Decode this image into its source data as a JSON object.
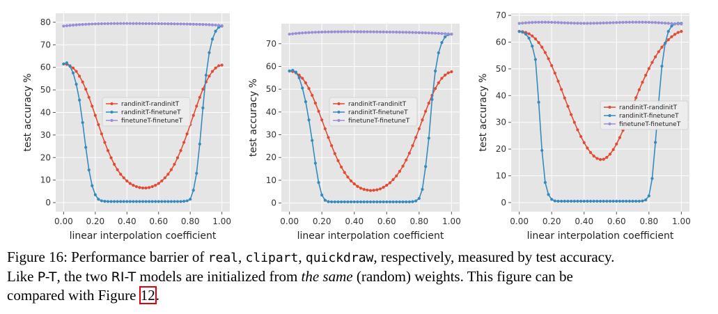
{
  "colors": {
    "panel_bg": "#e5e5e5",
    "grid": "#ffffff",
    "randinit_randinit": "#e24a33",
    "randinit_finetune": "#348abd",
    "finetune_finetune": "#988ed5",
    "figure_ref_box": "#e0000f"
  },
  "caption": {
    "line1_part1": "Figure 16: Performance barrier of ",
    "code_real": "real",
    "sep1": ", ",
    "code_clipart": "clipart",
    "sep2": ", ",
    "code_quickdraw": "quickdraw",
    "line1_part2": ", respectively, measured by test accuracy.",
    "line2_part1": "Like ",
    "model_pt": "P-T",
    "line2_part2": ", the two ",
    "model_rit": "RI-T",
    "line2_part3": " models are initialized from ",
    "emph_same": "the same",
    "line2_part4": " (random) weights. This figure can be",
    "line3_part1": "compared with Figure ",
    "figure_ref": "12",
    "line3_part2": "."
  },
  "chart_data": [
    {
      "type": "line",
      "xlabel": "linear interpolation coefficient",
      "ylabel": "test accuracy %",
      "xlim": [
        -0.05,
        1.05
      ],
      "ylim": [
        -4,
        84
      ],
      "xticks": [
        0.0,
        0.2,
        0.4,
        0.6,
        0.8,
        1.0
      ],
      "xtick_labels": [
        "0.00",
        "0.20",
        "0.40",
        "0.60",
        "0.80",
        "1.00"
      ],
      "yticks": [
        0,
        10,
        20,
        30,
        40,
        50,
        60,
        70,
        80
      ],
      "ytick_labels": [
        "0",
        "10",
        "20",
        "30",
        "40",
        "50",
        "60",
        "70",
        "80"
      ],
      "grid": true,
      "legend_position": "center",
      "x": [
        0.0,
        0.02,
        0.04,
        0.06,
        0.08,
        0.1,
        0.12,
        0.14,
        0.16,
        0.18,
        0.2,
        0.22,
        0.24,
        0.26,
        0.28,
        0.3,
        0.32,
        0.34,
        0.36,
        0.38,
        0.4,
        0.42,
        0.44,
        0.46,
        0.48,
        0.5,
        0.52,
        0.54,
        0.56,
        0.58,
        0.6,
        0.62,
        0.64,
        0.66,
        0.68,
        0.7,
        0.72,
        0.74,
        0.76,
        0.78,
        0.8,
        0.82,
        0.84,
        0.86,
        0.88,
        0.9,
        0.92,
        0.94,
        0.96,
        0.98,
        1.0
      ],
      "series": [
        {
          "name": "randinitT-randinitT",
          "color_key": "randinit_randinit",
          "values": [
            61.5,
            61.3,
            60.7,
            59.7,
            58.2,
            56.1,
            53.5,
            50.3,
            46.7,
            42.8,
            38.7,
            34.6,
            30.5,
            26.7,
            23.1,
            19.9,
            17.0,
            14.6,
            12.6,
            11.0,
            9.6,
            8.5,
            7.7,
            7.1,
            6.7,
            6.5,
            6.5,
            6.7,
            7.1,
            7.7,
            8.5,
            9.6,
            11.0,
            12.6,
            14.6,
            17.0,
            19.9,
            23.1,
            26.7,
            30.5,
            34.6,
            38.7,
            42.8,
            46.7,
            50.3,
            53.5,
            56.1,
            58.2,
            59.7,
            60.7,
            61.0
          ]
        },
        {
          "name": "randinitT-finetuneT",
          "color_key": "randinit_finetune",
          "values": [
            61.5,
            62.0,
            60.5,
            57.5,
            52.5,
            45.5,
            35.5,
            24.5,
            14.5,
            7.5,
            3.5,
            1.5,
            0.8,
            0.6,
            0.5,
            0.5,
            0.5,
            0.5,
            0.5,
            0.5,
            0.5,
            0.5,
            0.5,
            0.5,
            0.5,
            0.5,
            0.5,
            0.5,
            0.5,
            0.5,
            0.5,
            0.5,
            0.5,
            0.5,
            0.5,
            0.5,
            0.5,
            0.5,
            0.6,
            0.8,
            1.5,
            5.5,
            13.0,
            26.0,
            42.0,
            56.5,
            66.5,
            72.5,
            76.0,
            77.8,
            78.3
          ]
        },
        {
          "name": "finetuneT-finetuneT",
          "color_key": "finetune_finetune",
          "values": [
            78.3,
            78.45,
            78.6,
            78.72,
            78.83,
            78.93,
            79.02,
            79.1,
            79.17,
            79.23,
            79.28,
            79.32,
            79.36,
            79.39,
            79.41,
            79.43,
            79.44,
            79.45,
            79.46,
            79.46,
            79.46,
            79.46,
            79.45,
            79.45,
            79.44,
            79.43,
            79.42,
            79.41,
            79.4,
            79.39,
            79.38,
            79.37,
            79.35,
            79.34,
            79.32,
            79.3,
            79.28,
            79.26,
            79.24,
            79.21,
            79.18,
            79.15,
            79.11,
            79.07,
            79.02,
            78.96,
            78.9,
            78.82,
            78.73,
            78.62,
            78.5
          ]
        }
      ]
    },
    {
      "type": "line",
      "xlabel": "linear interpolation coefficient",
      "ylabel": "test accuracy %",
      "xlim": [
        -0.05,
        1.05
      ],
      "ylim": [
        -3.8,
        78.8
      ],
      "xticks": [
        0.0,
        0.2,
        0.4,
        0.6,
        0.8,
        1.0
      ],
      "xtick_labels": [
        "0.00",
        "0.20",
        "0.40",
        "0.60",
        "0.80",
        "1.00"
      ],
      "yticks": [
        0,
        10,
        20,
        30,
        40,
        50,
        60,
        70
      ],
      "ytick_labels": [
        "0",
        "10",
        "20",
        "30",
        "40",
        "50",
        "60",
        "70"
      ],
      "grid": true,
      "legend_position": "center",
      "x": [
        0.0,
        0.02,
        0.04,
        0.06,
        0.08,
        0.1,
        0.12,
        0.14,
        0.16,
        0.18,
        0.2,
        0.22,
        0.24,
        0.26,
        0.28,
        0.3,
        0.32,
        0.34,
        0.36,
        0.38,
        0.4,
        0.42,
        0.44,
        0.46,
        0.48,
        0.5,
        0.52,
        0.54,
        0.56,
        0.58,
        0.6,
        0.62,
        0.64,
        0.66,
        0.68,
        0.7,
        0.72,
        0.74,
        0.76,
        0.78,
        0.8,
        0.82,
        0.84,
        0.86,
        0.88,
        0.9,
        0.92,
        0.94,
        0.96,
        0.98,
        1.0
      ],
      "series": [
        {
          "name": "randinitT-randinitT",
          "color_key": "randinit_randinit",
          "values": [
            58.0,
            57.8,
            57.2,
            56.2,
            54.8,
            52.8,
            50.3,
            47.3,
            43.9,
            40.3,
            36.5,
            32.6,
            28.8,
            25.2,
            21.7,
            18.6,
            15.8,
            13.4,
            11.4,
            9.7,
            8.4,
            7.3,
            6.5,
            6.0,
            5.7,
            5.5,
            5.6,
            5.8,
            6.2,
            6.9,
            7.8,
            8.9,
            10.3,
            11.9,
            13.9,
            16.2,
            18.9,
            21.9,
            25.2,
            28.8,
            32.6,
            36.5,
            40.3,
            43.9,
            47.3,
            50.3,
            52.8,
            54.8,
            56.2,
            57.2,
            57.7
          ]
        },
        {
          "name": "randinitT-finetuneT",
          "color_key": "randinit_finetune",
          "values": [
            58.0,
            58.3,
            57.5,
            55.0,
            50.5,
            44.5,
            36.5,
            27.5,
            17.5,
            9.0,
            3.5,
            1.2,
            0.6,
            0.5,
            0.5,
            0.5,
            0.5,
            0.5,
            0.5,
            0.5,
            0.5,
            0.5,
            0.5,
            0.5,
            0.5,
            0.5,
            0.5,
            0.5,
            0.5,
            0.5,
            0.5,
            0.5,
            0.5,
            0.5,
            0.5,
            0.5,
            0.5,
            0.5,
            0.6,
            0.9,
            2.0,
            6.0,
            16.0,
            28.5,
            45.5,
            58.0,
            66.0,
            70.5,
            73.0,
            74.0,
            74.2
          ]
        },
        {
          "name": "finetuneT-finetuneT",
          "color_key": "finetune_finetune",
          "values": [
            74.2,
            74.35,
            74.5,
            74.62,
            74.73,
            74.82,
            74.9,
            74.97,
            75.03,
            75.08,
            75.12,
            75.16,
            75.19,
            75.21,
            75.23,
            75.24,
            75.25,
            75.26,
            75.26,
            75.26,
            75.26,
            75.25,
            75.25,
            75.24,
            75.23,
            75.22,
            75.21,
            75.2,
            75.18,
            75.17,
            75.15,
            75.13,
            75.11,
            75.09,
            75.06,
            75.04,
            75.01,
            74.98,
            74.95,
            74.91,
            74.87,
            74.83,
            74.78,
            74.73,
            74.67,
            74.61,
            74.54,
            74.46,
            74.38,
            74.3,
            74.2
          ]
        }
      ]
    },
    {
      "type": "line",
      "xlabel": "linear interpolation coefficient",
      "ylabel": "test accuracy %",
      "xlim": [
        -0.05,
        1.05
      ],
      "ylim": [
        -3.4,
        70.8
      ],
      "xticks": [
        0.0,
        0.2,
        0.4,
        0.6,
        0.8,
        1.0
      ],
      "xtick_labels": [
        "0.00",
        "0.20",
        "0.40",
        "0.60",
        "0.80",
        "1.00"
      ],
      "yticks": [
        0,
        10,
        20,
        30,
        40,
        50,
        60,
        70
      ],
      "ytick_labels": [
        "0",
        "10",
        "20",
        "30",
        "40",
        "50",
        "60",
        "70"
      ],
      "grid": true,
      "legend_position": "center-right",
      "x": [
        0.0,
        0.02,
        0.04,
        0.06,
        0.08,
        0.1,
        0.12,
        0.14,
        0.16,
        0.18,
        0.2,
        0.22,
        0.24,
        0.26,
        0.28,
        0.3,
        0.32,
        0.34,
        0.36,
        0.38,
        0.4,
        0.42,
        0.44,
        0.46,
        0.48,
        0.5,
        0.52,
        0.54,
        0.56,
        0.58,
        0.6,
        0.62,
        0.64,
        0.66,
        0.68,
        0.7,
        0.72,
        0.74,
        0.76,
        0.78,
        0.8,
        0.82,
        0.84,
        0.86,
        0.88,
        0.9,
        0.92,
        0.94,
        0.96,
        0.98,
        1.0
      ],
      "series": [
        {
          "name": "randinitT-randinitT",
          "color_key": "randinit_randinit",
          "values": [
            64.0,
            63.9,
            63.6,
            63.1,
            62.3,
            61.2,
            59.8,
            58.1,
            56.1,
            53.8,
            51.2,
            48.4,
            45.4,
            42.3,
            39.1,
            36.0,
            32.9,
            30.0,
            27.2,
            24.7,
            22.4,
            20.4,
            18.7,
            17.4,
            16.5,
            16.1,
            16.2,
            16.9,
            18.1,
            19.8,
            21.9,
            24.3,
            27.0,
            29.9,
            33.0,
            36.1,
            39.2,
            42.2,
            45.0,
            47.6,
            50.1,
            52.4,
            54.5,
            56.4,
            58.1,
            59.6,
            60.9,
            62.0,
            62.9,
            63.6,
            64.0
          ]
        },
        {
          "name": "randinitT-finetuneT",
          "color_key": "randinit_finetune",
          "values": [
            64.0,
            63.7,
            63.0,
            61.5,
            58.5,
            53.5,
            37.5,
            19.5,
            7.5,
            3.0,
            1.2,
            0.6,
            0.5,
            0.5,
            0.5,
            0.5,
            0.5,
            0.5,
            0.5,
            0.5,
            0.5,
            0.5,
            0.5,
            0.5,
            0.5,
            0.5,
            0.5,
            0.5,
            0.5,
            0.5,
            0.5,
            0.5,
            0.5,
            0.5,
            0.5,
            0.5,
            0.5,
            0.5,
            0.6,
            1.0,
            2.5,
            9.0,
            22.5,
            37.5,
            51.0,
            59.5,
            64.0,
            66.0,
            66.8,
            67.0,
            67.0
          ]
        },
        {
          "name": "finetuneT-finetuneT",
          "color_key": "finetune_finetune",
          "values": [
            67.0,
            67.1,
            67.2,
            67.28,
            67.35,
            67.4,
            67.43,
            67.45,
            67.45,
            67.43,
            67.4,
            67.36,
            67.31,
            67.26,
            67.21,
            67.16,
            67.12,
            67.08,
            67.05,
            67.03,
            67.02,
            67.02,
            67.03,
            67.05,
            67.08,
            67.11,
            67.15,
            67.19,
            67.23,
            67.27,
            67.31,
            67.35,
            67.38,
            67.41,
            67.43,
            67.45,
            67.46,
            67.46,
            67.45,
            67.43,
            67.4,
            67.36,
            67.31,
            67.25,
            67.18,
            67.1,
            67.02,
            66.94,
            66.86,
            66.8,
            66.75
          ]
        }
      ]
    }
  ]
}
